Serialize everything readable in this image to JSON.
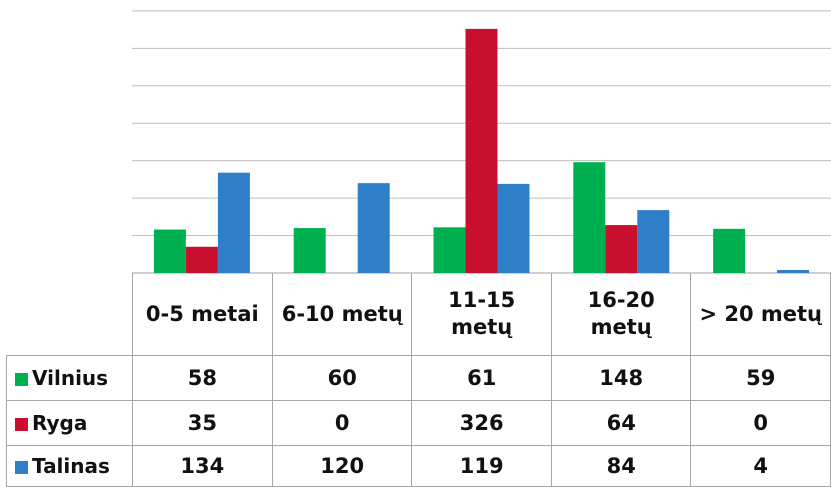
{
  "colors": {
    "gridline": "#bfbfbf",
    "tableBorder": "#a6a6a6",
    "text": "#111111"
  },
  "chart_data": {
    "type": "bar",
    "categories": [
      "0-5 metai",
      "6-10 metų",
      "11-15 metų",
      "16-20 metų",
      "> 20 metų"
    ],
    "series": [
      {
        "name": "Vilnius",
        "color": "#00b050",
        "values": [
          58,
          60,
          61,
          148,
          59
        ]
      },
      {
        "name": "Ryga",
        "color": "#c8102e",
        "values": [
          35,
          0,
          326,
          64,
          0
        ]
      },
      {
        "name": "Talinas",
        "color": "#2f7ec8",
        "values": [
          134,
          120,
          119,
          84,
          4
        ]
      }
    ],
    "ylim": [
      0,
      350
    ],
    "grid": true,
    "legend": "data-table-left"
  }
}
